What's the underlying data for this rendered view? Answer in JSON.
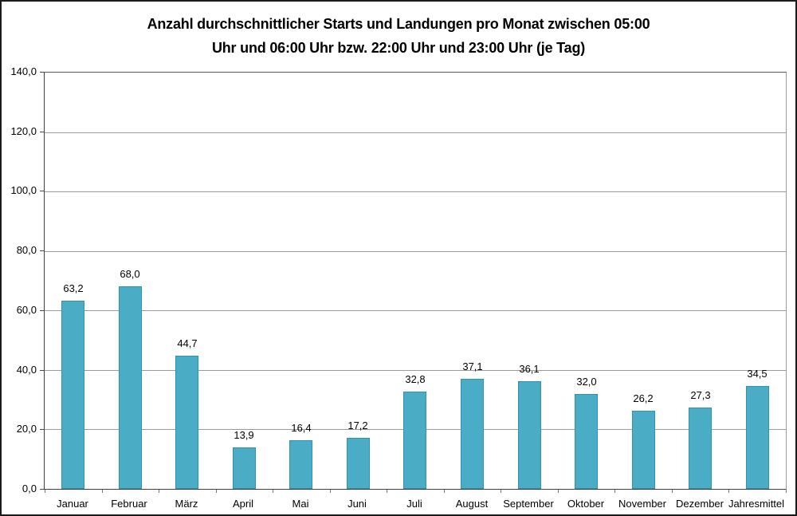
{
  "window": {
    "background": "#ffffff",
    "border_color": "#1a1a1a"
  },
  "title": {
    "line1": "Anzahl durchschnittlicher Starts und Landungen pro Monat zwischen 05:00",
    "line2": "Uhr und 06:00 Uhr bzw. 22:00 Uhr und 23:00 Uhr (je Tag)"
  },
  "colors": {
    "bar_fill": "#4bacc6",
    "bar_border": "#2e93b2",
    "gridline": "#9b9b9b",
    "axis": "#3f3f3f",
    "text": "#000000"
  },
  "chart_data": {
    "type": "bar",
    "title": "Anzahl durchschnittlicher Starts und Landungen pro Monat zwischen 05:00 Uhr und 06:00 Uhr bzw. 22:00 Uhr und 23:00 Uhr (je Tag)",
    "categories": [
      "Januar",
      "Februar",
      "März",
      "April",
      "Mai",
      "Juni",
      "Juli",
      "August",
      "September",
      "Oktober",
      "November",
      "Dezember",
      "Jahresmittel"
    ],
    "values": [
      63.2,
      68.0,
      44.7,
      13.9,
      16.4,
      17.2,
      32.8,
      37.1,
      36.1,
      32.0,
      26.2,
      27.3,
      34.5
    ],
    "value_labels": [
      "63,2",
      "68,0",
      "44,7",
      "13,9",
      "16,4",
      "17,2",
      "32,8",
      "37,1",
      "36,1",
      "32,0",
      "26,2",
      "27,3",
      "34,5"
    ],
    "xlabel": "",
    "ylabel": "",
    "ylim": [
      0,
      140
    ],
    "ytick_step": 20,
    "ytick_labels": [
      "0,0",
      "20,0",
      "40,0",
      "60,0",
      "80,0",
      "100,0",
      "120,0",
      "140,0"
    ],
    "grid": true,
    "legend": false
  }
}
